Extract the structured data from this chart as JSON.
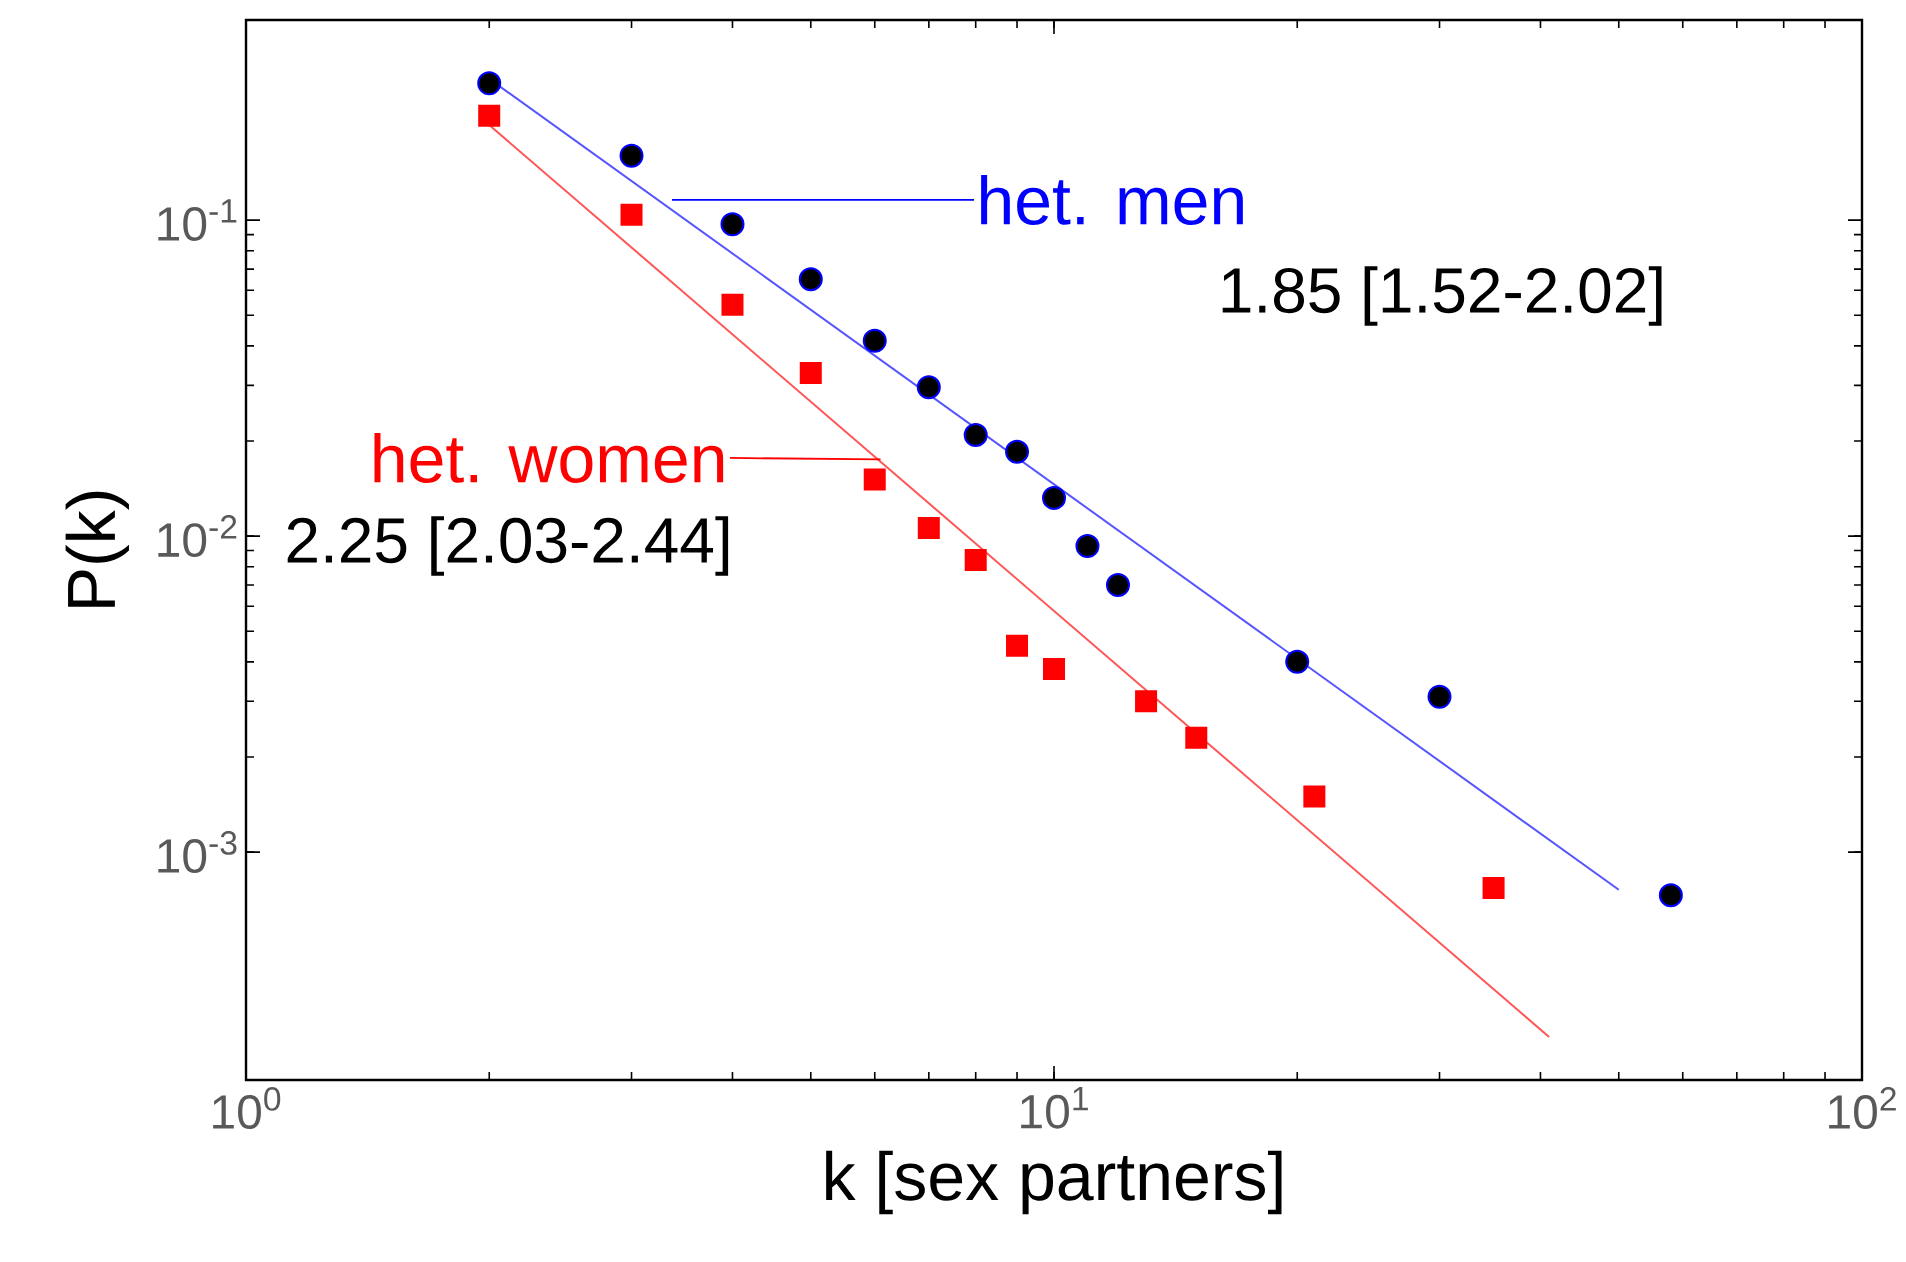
{
  "chart_data": {
    "type": "scatter",
    "xlabel": "k [sex partners]",
    "ylabel": "P(k)",
    "log": "xy",
    "xlim": [
      1,
      100
    ],
    "ylim": [
      0.00019,
      0.43
    ],
    "xticks": [
      {
        "value": 1,
        "label": "10$^{0}$"
      },
      {
        "value": 10,
        "label": "10$^{1}$"
      },
      {
        "value": 100,
        "label": "10$^{2}$"
      }
    ],
    "yticks": [
      {
        "value": 0.001,
        "label": "10$^{-3}$"
      },
      {
        "value": 0.01,
        "label": "10$^{-2}$"
      },
      {
        "value": 0.1,
        "label": "10$^{-1}$"
      }
    ],
    "series": [
      {
        "marker": "circle",
        "color": "#000000",
        "x": [
          2,
          3,
          4,
          5,
          6,
          7,
          8,
          9,
          10,
          11,
          12,
          20,
          30,
          58
        ],
        "values": [
          0.271,
          0.16,
          0.097,
          0.065,
          0.0415,
          0.0296,
          0.0209,
          0.0185,
          0.0132,
          0.0093,
          0.007,
          0.004,
          0.0031,
          0.00073
        ]
      },
      {
        "marker": "square",
        "color": "#ff0000",
        "x": [
          2,
          3,
          4,
          5,
          6,
          7,
          8,
          9,
          10,
          13,
          15,
          21,
          35
        ],
        "values": [
          0.214,
          0.104,
          0.054,
          0.0328,
          0.0151,
          0.0106,
          0.0084,
          0.0045,
          0.0038,
          0.003,
          0.0023,
          0.0015,
          0.00077
        ]
      },
      {
        "type": "line",
        "color": "#5555ff",
        "x": [
          2,
          50
        ],
        "values": [
          0.28,
          0.00076
        ]
      },
      {
        "type": "line",
        "color": "#ff5555",
        "x": [
          2,
          41
        ],
        "values": [
          0.2,
          0.00026
        ]
      }
    ],
    "annotations": [
      "het. men",
      "1.85 [1.52-2.02]",
      {
        "text": "het. women",
        "x": 6.1,
        "y": 0.0175
      },
      "2.25 [2.03-2.44]"
    ]
  }
}
